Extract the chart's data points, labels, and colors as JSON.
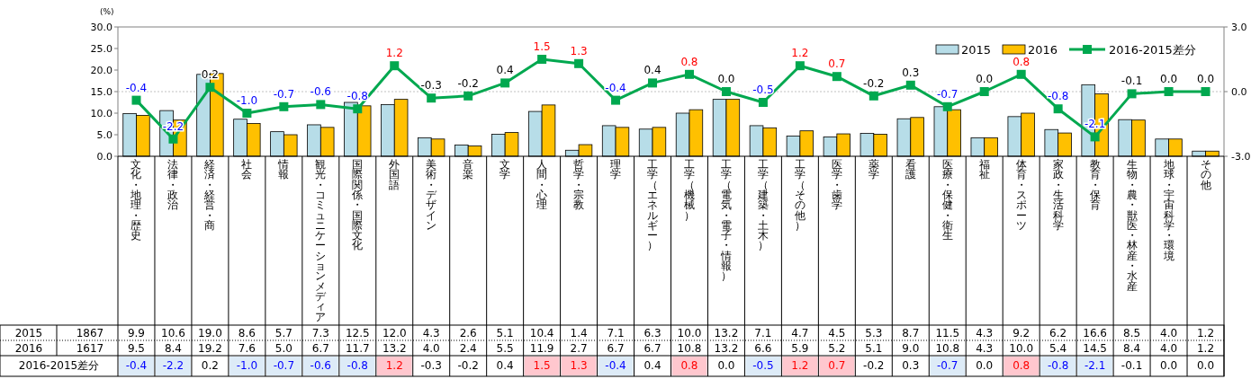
{
  "chart_data": {
    "type": "bar",
    "ylabel": "(%)",
    "categories": [
      "文化・地理・歴史",
      "法律・政治",
      "経済・経営・商",
      "社会",
      "情報",
      "観光・コミュニケーションメディア",
      "国際関係・国際文化",
      "外国語",
      "美術・デザイン",
      "音楽",
      "文学",
      "人間・心理",
      "哲学・宗教",
      "理学",
      "工学（エネルギー）",
      "工学（機械）",
      "工学（電気・電子・情報）",
      "工学（建築・土木）",
      "工学（その他）",
      "医学・歯学",
      "薬学",
      "看護",
      "医療・保健・衛生",
      "福祉",
      "体育・スポーツ",
      "家政・生活科学",
      "教育・保育",
      "生物・農・獣医・林産・水産",
      "地球・宇宙科学・環境",
      "その他"
    ],
    "series": [
      {
        "name": "2015",
        "color": "#b7dde8",
        "values": [
          9.9,
          10.6,
          19.0,
          8.6,
          5.7,
          7.3,
          12.5,
          12.0,
          4.3,
          2.6,
          5.1,
          10.4,
          1.4,
          7.1,
          6.3,
          10.0,
          13.2,
          7.1,
          4.7,
          4.5,
          5.3,
          8.7,
          11.5,
          4.3,
          9.2,
          6.2,
          16.6,
          8.5,
          4.0,
          1.2
        ],
        "value_labels": [
          "9.9",
          "10.6",
          "19.0",
          "8.6",
          "5.7",
          "7.3",
          "12.5",
          "12.0",
          "4.3",
          "2.6",
          "5.1",
          "10.4",
          "1.4",
          "7.1",
          "6.3",
          "10.0",
          "13.2",
          "7.1",
          "4.7",
          "4.5",
          "5.3",
          "8.7",
          "11.5",
          "4.3",
          "9.2",
          "6.2",
          "16.6",
          "8.5",
          "4.0",
          "1.2"
        ]
      },
      {
        "name": "2016",
        "color": "#ffc000",
        "values": [
          9.5,
          8.4,
          19.2,
          7.6,
          5.0,
          6.7,
          11.7,
          13.2,
          4.0,
          2.4,
          5.5,
          11.9,
          2.7,
          6.7,
          6.7,
          10.8,
          13.2,
          6.6,
          5.9,
          5.2,
          5.1,
          9.0,
          10.8,
          4.3,
          10.0,
          5.4,
          14.5,
          8.4,
          4.0,
          1.2
        ],
        "value_labels": [
          "9.5",
          "8.4",
          "19.2",
          "7.6",
          "5.0",
          "6.7",
          "11.7",
          "13.2",
          "4.0",
          "2.4",
          "5.5",
          "11.9",
          "2.7",
          "6.7",
          "6.7",
          "10.8",
          "13.2",
          "6.6",
          "5.9",
          "5.2",
          "5.1",
          "9.0",
          "10.8",
          "4.3",
          "10.0",
          "5.4",
          "14.5",
          "8.4",
          "4.0",
          "1.2"
        ]
      },
      {
        "name": "2016-2015差分",
        "type": "line",
        "axis": "y2",
        "color": "#00a84f",
        "marker": "square",
        "values": [
          -0.4,
          -2.2,
          0.2,
          -1.0,
          -0.7,
          -0.6,
          -0.8,
          1.2,
          -0.3,
          -0.2,
          0.4,
          1.5,
          1.3,
          -0.4,
          0.4,
          0.8,
          0.0,
          -0.5,
          1.2,
          0.7,
          -0.2,
          0.3,
          -0.7,
          0.0,
          0.8,
          -0.8,
          -2.1,
          -0.1,
          0.0,
          0.0
        ],
        "value_labels": [
          "-0.4",
          "-2.2",
          "0.2",
          "-1.0",
          "-0.7",
          "-0.6",
          "-0.8",
          "1.2",
          "-0.3",
          "-0.2",
          "0.4",
          "1.5",
          "1.3",
          "-0.4",
          "0.4",
          "0.8",
          "0.0",
          "-0.5",
          "1.2",
          "0.7",
          "-0.2",
          "0.3",
          "-0.7",
          "0.0",
          "0.8",
          "-0.8",
          "-2.1",
          "-0.1",
          "0.0",
          "0.0"
        ]
      }
    ],
    "ylim": [
      0,
      30
    ],
    "yticks": [
      {
        "value": 0,
        "label": "0.0"
      },
      {
        "value": 5,
        "label": "5.0"
      },
      {
        "value": 10,
        "label": "10.0"
      },
      {
        "value": 15,
        "label": "15.0"
      },
      {
        "value": 20,
        "label": "20.0"
      },
      {
        "value": 25,
        "label": "25.0"
      },
      {
        "value": 30,
        "label": "30.0"
      }
    ],
    "y2lim": [
      -3,
      3
    ],
    "y2ticks": [
      {
        "value": -3,
        "label": "-3.0"
      },
      {
        "value": 0,
        "label": "0.0"
      },
      {
        "value": 3,
        "label": "3.0"
      }
    ],
    "ref_lines": [
      {
        "axis": "y2",
        "value": 0,
        "color": "#c0c0c0",
        "line_style": "dotted"
      }
    ],
    "annotations": [
      "1867",
      "1617"
    ],
    "legend": "top right"
  }
}
